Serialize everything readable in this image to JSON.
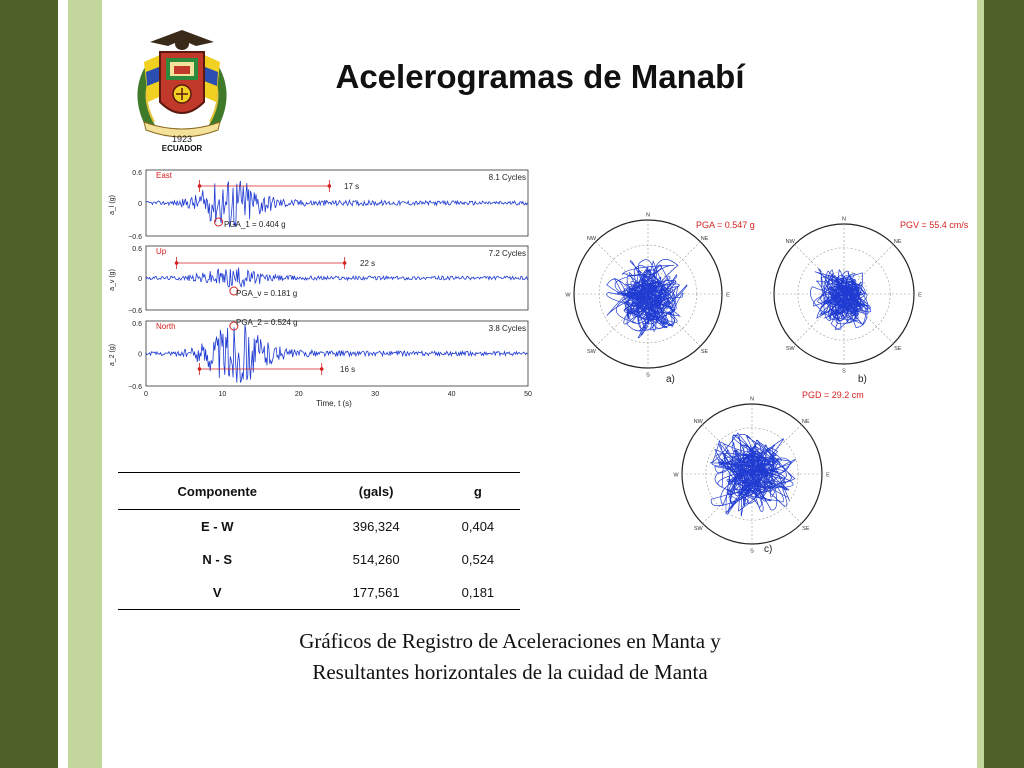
{
  "title": "Acelerogramas de Manabí",
  "logo": {
    "year_text": "1923",
    "country_text": "ECUADOR"
  },
  "accelerograms": {
    "x_label": "Time, t (s)",
    "x_ticks": [
      "0",
      "10",
      "20",
      "30",
      "40",
      "50"
    ],
    "y_ticks": [
      "0.6",
      "0",
      "−0.6"
    ],
    "panels": [
      {
        "label": "East",
        "y_label": "a_l (g)",
        "cycles": "8.1 Cycles",
        "duration": "17 s",
        "pga": "PGA_1 = 0.404 g"
      },
      {
        "label": "Up",
        "y_label": "a_v (g)",
        "cycles": "7.2 Cycles",
        "duration": "22 s",
        "pga": "PGA_v = 0.181 g"
      },
      {
        "label": "North",
        "y_label": "a_2 (g)",
        "cycles": "3.8 Cycles",
        "duration": "16 s",
        "pga": "PGA_2 = 0.524 g"
      }
    ]
  },
  "polar_plots": [
    {
      "label": "a)",
      "value": "PGA = 0.547 g"
    },
    {
      "label": "b)",
      "value": "PGV = 55.4 cm/s"
    },
    {
      "label": "c)",
      "value": "PGD = 29.2 cm"
    }
  ],
  "compass": {
    "n": "N",
    "s": "S",
    "e": "E",
    "w": "W",
    "ne": "NE",
    "nw": "NW",
    "se": "SE",
    "sw": "SW"
  },
  "table": {
    "headers": [
      "Componente",
      "(gals)",
      "g"
    ],
    "rows": [
      [
        "E - W",
        "396,324",
        "0,404"
      ],
      [
        "N - S",
        "514,260",
        "0,524"
      ],
      [
        "V",
        "177,561",
        "0,181"
      ]
    ]
  },
  "caption": {
    "line1": "Gráficos de Registro de Aceleraciones en Manta y",
    "line2": "Resultantes horizontales de la cuidad de Manta"
  },
  "colors": {
    "dark_green": "#4f6228",
    "light_green": "#c3d69b",
    "trace_blue": "#1f3bd1",
    "marker_red": "#d42020"
  }
}
